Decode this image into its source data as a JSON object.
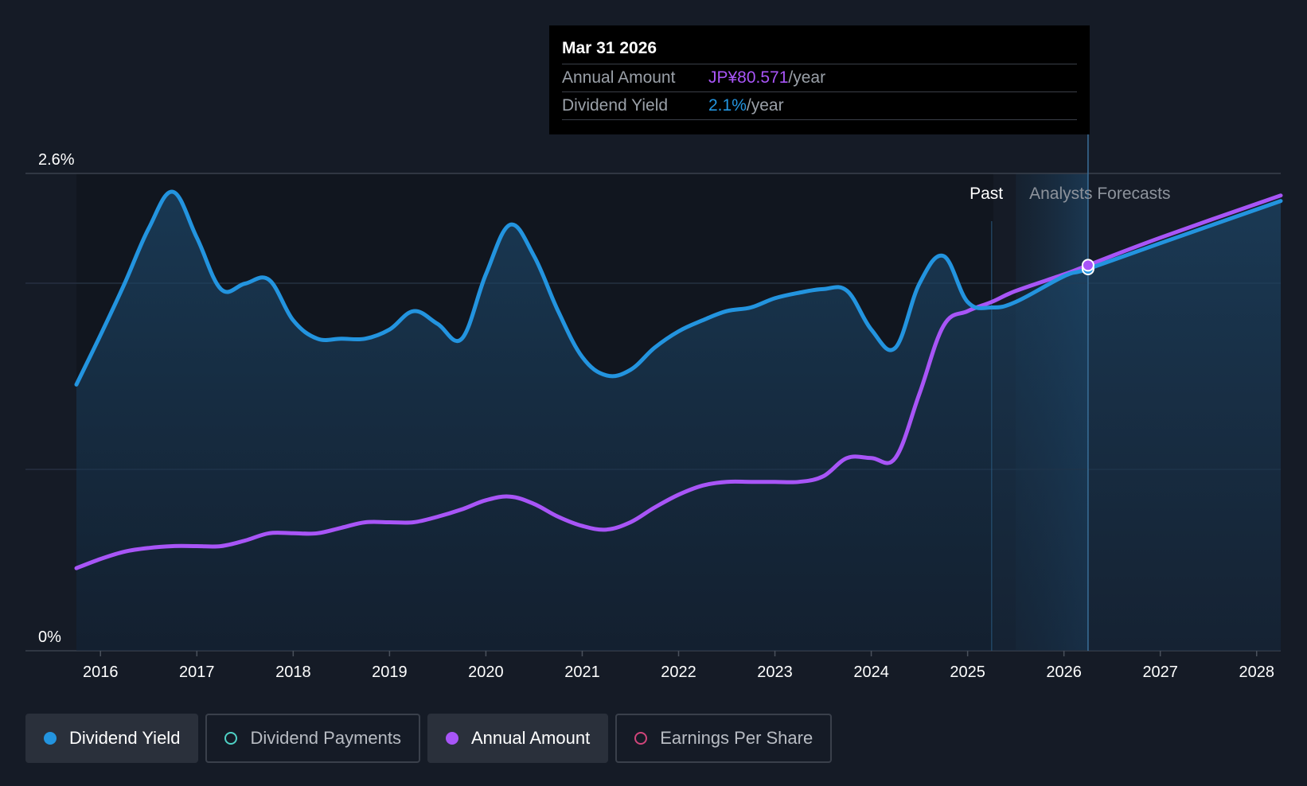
{
  "tooltip": {
    "date": "Mar 31 2026",
    "rows": [
      {
        "label": "Annual Amount",
        "value": "JP¥80.571",
        "unit": "/year"
      },
      {
        "label": "Dividend Yield",
        "value": "2.1%",
        "unit": "/year"
      }
    ]
  },
  "zones": {
    "past": "Past",
    "forecast": "Analysts Forecasts"
  },
  "legend": [
    {
      "label": "Dividend Yield",
      "color": "#2394df",
      "active": true,
      "filled": true
    },
    {
      "label": "Dividend Payments",
      "color": "#4fd1c5",
      "active": false,
      "filled": false
    },
    {
      "label": "Annual Amount",
      "color": "#a855f7",
      "active": true,
      "filled": true
    },
    {
      "label": "Earnings Per Share",
      "color": "#d0457a",
      "active": false,
      "filled": false
    }
  ],
  "colors": {
    "background": "#151b26",
    "yield": "#2394df",
    "amount": "#a855f7",
    "grid": "#2c3340"
  },
  "chart_data": {
    "type": "line",
    "title": "",
    "xlabel": "",
    "ylabel": "",
    "x_ticks": [
      "2016",
      "2017",
      "2018",
      "2019",
      "2020",
      "2021",
      "2022",
      "2023",
      "2024",
      "2025",
      "2026",
      "2027",
      "2028"
    ],
    "y_ticks": [
      "0%",
      "2.6%"
    ],
    "ylim": [
      0,
      2.6
    ],
    "xlim": [
      2015.75,
      2028.25
    ],
    "grid": true,
    "past_until": 2025.25,
    "forecast_from": 2025.5,
    "highlight_x": 2026.25,
    "series": [
      {
        "name": "Dividend Yield",
        "unit": "%",
        "points": [
          [
            2015.75,
            1.45
          ],
          [
            2016.0,
            1.72
          ],
          [
            2016.25,
            2.0
          ],
          [
            2016.5,
            2.3
          ],
          [
            2016.75,
            2.5
          ],
          [
            2017.0,
            2.25
          ],
          [
            2017.25,
            1.97
          ],
          [
            2017.5,
            2.0
          ],
          [
            2017.75,
            2.02
          ],
          [
            2018.0,
            1.8
          ],
          [
            2018.25,
            1.7
          ],
          [
            2018.5,
            1.7
          ],
          [
            2018.75,
            1.7
          ],
          [
            2019.0,
            1.75
          ],
          [
            2019.25,
            1.85
          ],
          [
            2019.5,
            1.78
          ],
          [
            2019.75,
            1.7
          ],
          [
            2020.0,
            2.05
          ],
          [
            2020.25,
            2.32
          ],
          [
            2020.5,
            2.15
          ],
          [
            2020.75,
            1.85
          ],
          [
            2021.0,
            1.6
          ],
          [
            2021.25,
            1.5
          ],
          [
            2021.5,
            1.53
          ],
          [
            2021.75,
            1.65
          ],
          [
            2022.0,
            1.74
          ],
          [
            2022.25,
            1.8
          ],
          [
            2022.5,
            1.85
          ],
          [
            2022.75,
            1.87
          ],
          [
            2023.0,
            1.92
          ],
          [
            2023.25,
            1.95
          ],
          [
            2023.5,
            1.97
          ],
          [
            2023.75,
            1.96
          ],
          [
            2024.0,
            1.75
          ],
          [
            2024.25,
            1.65
          ],
          [
            2024.5,
            2.0
          ],
          [
            2024.75,
            2.15
          ],
          [
            2025.0,
            1.9
          ],
          [
            2025.25,
            1.87
          ],
          [
            2025.5,
            1.9
          ],
          [
            2026.0,
            2.04
          ],
          [
            2026.25,
            2.08
          ],
          [
            2027.0,
            2.22
          ],
          [
            2028.25,
            2.45
          ]
        ]
      },
      {
        "name": "Annual Amount",
        "unit": "JP¥",
        "points": [
          [
            2015.75,
            0.45
          ],
          [
            2016.0,
            0.5
          ],
          [
            2016.25,
            0.54
          ],
          [
            2016.5,
            0.56
          ],
          [
            2016.75,
            0.57
          ],
          [
            2017.0,
            0.57
          ],
          [
            2017.25,
            0.57
          ],
          [
            2017.5,
            0.6
          ],
          [
            2017.75,
            0.64
          ],
          [
            2018.0,
            0.64
          ],
          [
            2018.25,
            0.64
          ],
          [
            2018.5,
            0.67
          ],
          [
            2018.75,
            0.7
          ],
          [
            2019.0,
            0.7
          ],
          [
            2019.25,
            0.7
          ],
          [
            2019.5,
            0.73
          ],
          [
            2019.75,
            0.77
          ],
          [
            2020.0,
            0.82
          ],
          [
            2020.25,
            0.84
          ],
          [
            2020.5,
            0.8
          ],
          [
            2020.75,
            0.73
          ],
          [
            2021.0,
            0.68
          ],
          [
            2021.25,
            0.66
          ],
          [
            2021.5,
            0.7
          ],
          [
            2021.75,
            0.78
          ],
          [
            2022.0,
            0.85
          ],
          [
            2022.25,
            0.9
          ],
          [
            2022.5,
            0.92
          ],
          [
            2022.75,
            0.92
          ],
          [
            2023.0,
            0.92
          ],
          [
            2023.25,
            0.92
          ],
          [
            2023.5,
            0.95
          ],
          [
            2023.75,
            1.05
          ],
          [
            2024.0,
            1.05
          ],
          [
            2024.25,
            1.05
          ],
          [
            2024.5,
            1.4
          ],
          [
            2024.75,
            1.77
          ],
          [
            2025.0,
            1.85
          ],
          [
            2025.25,
            1.9
          ],
          [
            2025.5,
            1.96
          ],
          [
            2026.0,
            2.05
          ],
          [
            2026.25,
            2.1
          ],
          [
            2027.0,
            2.25
          ],
          [
            2028.25,
            2.48
          ]
        ]
      }
    ]
  }
}
